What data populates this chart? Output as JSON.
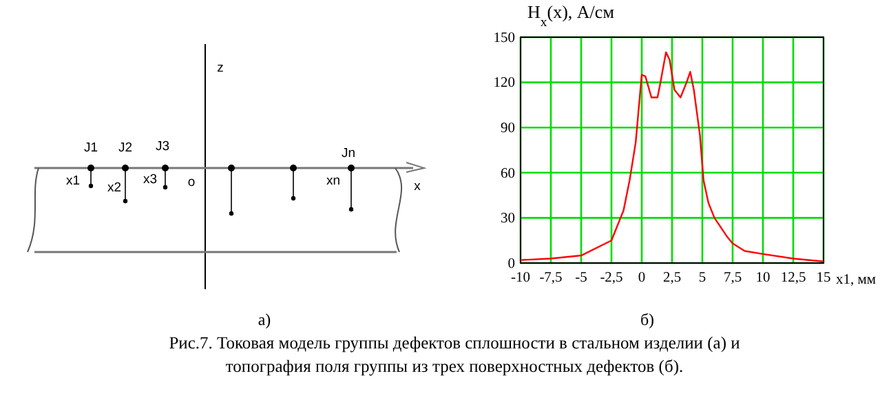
{
  "chart_data": [
    {
      "type": "other",
      "annotations": [
        "z",
        "x",
        "J1",
        "J2",
        "J3",
        "Jn",
        "x1",
        "x2",
        "x3",
        "o",
        "xn",
        "а)"
      ]
    },
    {
      "type": "line",
      "title": "H$_{x}$(x), А/см",
      "xlabel": "x1, мм",
      "x": [
        -10,
        -7.5,
        -5,
        -2.5,
        -1.5,
        -1,
        -0.5,
        0,
        0.3,
        0.8,
        1.3,
        1.5,
        2,
        2.3,
        2.7,
        3.2,
        3.7,
        4,
        4.3,
        4.8,
        5.1,
        5.5,
        6,
        7,
        7.5,
        8.5,
        10,
        12.5,
        15
      ],
      "series": [
        {
          "color": "#ff0000",
          "values": [
            2,
            3,
            5,
            15,
            35,
            55,
            80,
            125,
            124,
            110,
            110,
            118,
            140,
            135,
            115,
            110,
            120,
            127,
            115,
            85,
            55,
            40,
            30,
            18,
            13,
            8,
            6,
            3,
            1
          ]
        }
      ],
      "xlim": [
        -10,
        15
      ],
      "ylim": [
        0,
        150
      ],
      "xticks": [
        -10,
        {
          "value": -7.5,
          "label": "-7,5"
        },
        -5,
        {
          "value": -2.5,
          "label": "-2,5"
        },
        0,
        {
          "value": 2.5,
          "label": "2,5"
        },
        5,
        {
          "value": 7.5,
          "label": "7,5"
        },
        10,
        {
          "value": 12.5,
          "label": "12,5"
        },
        15
      ],
      "yticks": [
        0,
        30,
        60,
        90,
        120,
        150
      ],
      "grid": true,
      "marker": "none",
      "line_style": "solid",
      "annotations": [
        "б)",
        "Рис.7. Токовая модель группы дефектов сплошности в стальном изделии (а) и топография поля группы из трех поверхностных дефектов (б)."
      ]
    }
  ]
}
